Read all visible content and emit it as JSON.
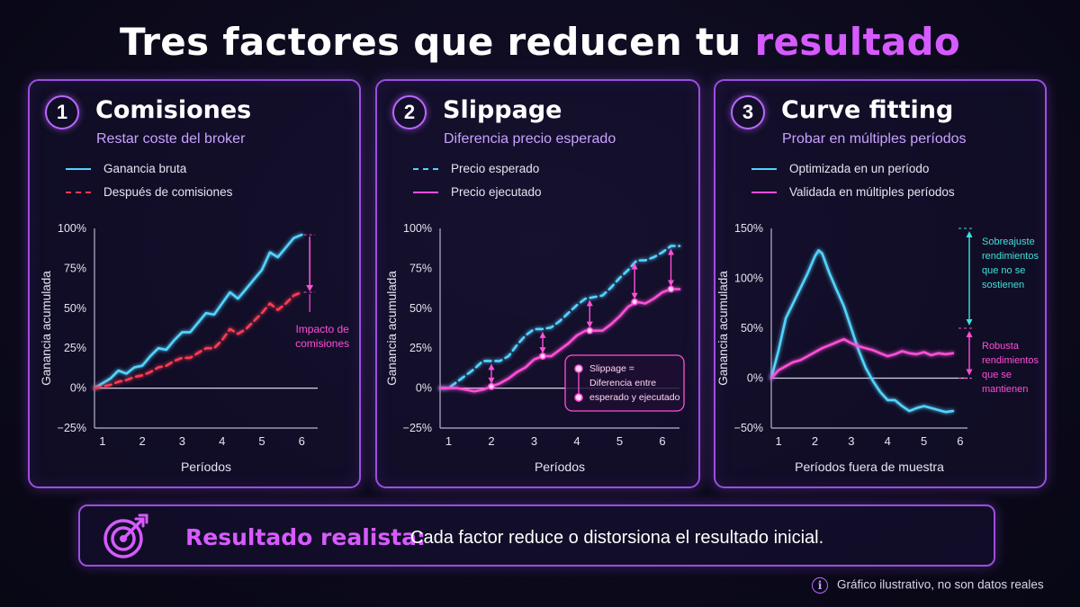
{
  "title": {
    "main": "Tres factores que reducen tu ",
    "accent": "resultado"
  },
  "colors": {
    "cyan": "#52d4ff",
    "red": "#ff3a52",
    "magenta": "#ff4fd8",
    "purple": "#9a4fe0",
    "accent": "#d65bff"
  },
  "panels": [
    {
      "number": "1",
      "title": "Comisiones",
      "subtitle": "Restar coste del broker",
      "legend": [
        {
          "label": "Ganancia bruta",
          "color": "#52d4ff",
          "style": "solid"
        },
        {
          "label": "Después de comisiones",
          "color": "#ff3a52",
          "style": "dashed"
        }
      ]
    },
    {
      "number": "2",
      "title": "Slippage",
      "subtitle": "Diferencia precio esperado",
      "legend": [
        {
          "label": "Precio esperado",
          "color": "#52d4ff",
          "style": "dashed"
        },
        {
          "label": "Precio ejecutado",
          "color": "#ff4fd8",
          "style": "solid"
        }
      ]
    },
    {
      "number": "3",
      "title": "Curve fitting",
      "subtitle": "Probar en múltiples períodos",
      "legend": [
        {
          "label": "Optimizada en un período",
          "color": "#52d4ff",
          "style": "solid"
        },
        {
          "label": "Validada en múltiples períodos",
          "color": "#ff4fd8",
          "style": "solid"
        }
      ]
    }
  ],
  "chart_data": [
    {
      "type": "line",
      "xlabel": "Períodos",
      "ylabel": "Ganancia acumulada",
      "xlim": [
        0.8,
        6.4
      ],
      "ylim": [
        -25,
        100
      ],
      "x_ticks": [
        "1",
        "2",
        "3",
        "4",
        "5",
        "6"
      ],
      "y_ticks": [
        "100%",
        "75%",
        "50%",
        "25%",
        "0%",
        "−25%"
      ],
      "y_tick_values": [
        100,
        75,
        50,
        25,
        0,
        -25
      ],
      "series": [
        {
          "name": "Ganancia bruta",
          "color": "#52d4ff",
          "dash": false,
          "x": [
            0.8,
            1.0,
            1.2,
            1.4,
            1.6,
            1.8,
            2.0,
            2.2,
            2.4,
            2.6,
            2.8,
            3.0,
            3.2,
            3.4,
            3.6,
            3.8,
            4.0,
            4.2,
            4.4,
            4.6,
            4.8,
            5.0,
            5.2,
            5.4,
            5.6,
            5.8,
            6.0
          ],
          "y": [
            0,
            3,
            6,
            11,
            9,
            13,
            14,
            20,
            25,
            24,
            30,
            35,
            35,
            41,
            47,
            46,
            53,
            60,
            56,
            62,
            68,
            74,
            85,
            82,
            88,
            94,
            96
          ]
        },
        {
          "name": "Después de comisiones",
          "color": "#ff3a52",
          "dash": true,
          "x": [
            0.8,
            1.0,
            1.2,
            1.4,
            1.6,
            1.8,
            2.0,
            2.2,
            2.4,
            2.6,
            2.8,
            3.0,
            3.2,
            3.4,
            3.6,
            3.8,
            4.0,
            4.2,
            4.4,
            4.6,
            4.8,
            5.0,
            5.2,
            5.4,
            5.6,
            5.8,
            6.0
          ],
          "y": [
            0,
            1,
            2,
            4,
            5,
            7,
            8,
            10,
            13,
            14,
            17,
            19,
            19,
            22,
            25,
            25,
            30,
            37,
            34,
            37,
            42,
            47,
            53,
            49,
            53,
            58,
            60
          ]
        }
      ],
      "annotation": {
        "line1": "Impacto de",
        "line2": "comisiones",
        "x": 6.2,
        "y_from": 96,
        "y_to": 60
      }
    },
    {
      "type": "line",
      "xlabel": "Períodos",
      "ylabel": "Ganancia acumulada",
      "xlim": [
        0.8,
        6.4
      ],
      "ylim": [
        -25,
        100
      ],
      "x_ticks": [
        "1",
        "2",
        "3",
        "4",
        "5",
        "6"
      ],
      "y_ticks": [
        "100%",
        "75%",
        "50%",
        "25%",
        "0%",
        "−25%"
      ],
      "y_tick_values": [
        100,
        75,
        50,
        25,
        0,
        -25
      ],
      "series": [
        {
          "name": "Precio esperado",
          "color": "#52d4ff",
          "dash": true,
          "x": [
            0.8,
            1.0,
            1.2,
            1.4,
            1.6,
            1.8,
            2.0,
            2.2,
            2.4,
            2.6,
            2.8,
            3.0,
            3.2,
            3.4,
            3.6,
            3.8,
            4.0,
            4.2,
            4.4,
            4.6,
            4.8,
            5.0,
            5.2,
            5.4,
            5.6,
            5.8,
            6.0,
            6.2,
            6.4
          ],
          "y": [
            0,
            0,
            4,
            8,
            12,
            17,
            17,
            17,
            20,
            27,
            33,
            37,
            37,
            38,
            42,
            47,
            52,
            56,
            57,
            58,
            63,
            69,
            74,
            80,
            80,
            82,
            85,
            89,
            89
          ]
        },
        {
          "name": "Precio ejecutado",
          "color": "#ff4fd8",
          "dash": false,
          "x": [
            0.8,
            1.0,
            1.2,
            1.4,
            1.6,
            1.8,
            2.0,
            2.2,
            2.4,
            2.6,
            2.8,
            3.0,
            3.2,
            3.4,
            3.6,
            3.8,
            4.0,
            4.2,
            4.4,
            4.6,
            4.8,
            5.0,
            5.2,
            5.4,
            5.6,
            5.8,
            6.0,
            6.2,
            6.4
          ],
          "y": [
            0,
            0,
            0,
            -1,
            -2,
            -1,
            1,
            3,
            6,
            10,
            13,
            18,
            20,
            20,
            24,
            28,
            33,
            36,
            36,
            36,
            40,
            45,
            51,
            54,
            53,
            56,
            60,
            62,
            62
          ]
        }
      ],
      "slippage_markers": [
        {
          "x": 2.0,
          "y_top": 17,
          "y_bottom": 1
        },
        {
          "x": 3.2,
          "y_top": 37,
          "y_bottom": 20
        },
        {
          "x": 4.3,
          "y_top": 57,
          "y_bottom": 36
        },
        {
          "x": 5.35,
          "y_top": 80,
          "y_bottom": 54
        },
        {
          "x": 6.2,
          "y_top": 89,
          "y_bottom": 62
        }
      ],
      "callout": {
        "line1": "Slippage =",
        "line2": "Diferencia entre",
        "line3": "esperado y ejecutado"
      }
    },
    {
      "type": "line",
      "xlabel": "Períodos fuera de muestra",
      "ylabel": "Ganancia acumulada",
      "xlim": [
        0.8,
        6.2
      ],
      "ylim": [
        -50,
        150
      ],
      "x_ticks": [
        "1",
        "2",
        "3",
        "4",
        "5",
        "6"
      ],
      "y_ticks": [
        "150%",
        "100%",
        "50%",
        "0%",
        "−50%"
      ],
      "y_tick_values": [
        150,
        100,
        50,
        0,
        -50
      ],
      "series": [
        {
          "name": "Optimizada en un período",
          "color": "#52d4ff",
          "dash": false,
          "x": [
            0.8,
            1.0,
            1.2,
            1.4,
            1.6,
            1.8,
            2.0,
            2.1,
            2.2,
            2.4,
            2.6,
            2.8,
            3.0,
            3.2,
            3.4,
            3.6,
            3.8,
            4.0,
            4.2,
            4.4,
            4.6,
            4.8,
            5.0,
            5.2,
            5.4,
            5.6,
            5.8
          ],
          "y": [
            0,
            28,
            60,
            75,
            90,
            105,
            122,
            128,
            125,
            105,
            88,
            72,
            50,
            28,
            10,
            -3,
            -14,
            -22,
            -22,
            -28,
            -33,
            -30,
            -28,
            -30,
            -32,
            -34,
            -33
          ]
        },
        {
          "name": "Validada en múltiples períodos",
          "color": "#ff4fd8",
          "dash": false,
          "x": [
            0.8,
            1.0,
            1.2,
            1.4,
            1.6,
            1.8,
            2.0,
            2.2,
            2.4,
            2.6,
            2.8,
            3.0,
            3.2,
            3.4,
            3.6,
            3.8,
            4.0,
            4.2,
            4.4,
            4.6,
            4.8,
            5.0,
            5.2,
            5.4,
            5.6,
            5.8
          ],
          "y": [
            0,
            8,
            12,
            16,
            18,
            22,
            26,
            30,
            33,
            36,
            39,
            35,
            32,
            30,
            28,
            25,
            22,
            24,
            27,
            25,
            24,
            26,
            23,
            25,
            24,
            25
          ]
        }
      ],
      "annotations": [
        {
          "lines": [
            "Sobreajuste",
            "rendimientos",
            "que no se",
            "sostienen"
          ],
          "color": "#40e0d8",
          "y_from": 150,
          "y_to": 50
        },
        {
          "lines": [
            "Robusta",
            "rendimientos",
            "que se",
            "mantienen"
          ],
          "color": "#ff4fd8",
          "y_from": 50,
          "y_to": 0
        }
      ]
    }
  ],
  "footer": {
    "label": "Resultado realista:",
    "text": "Cada factor reduce o distorsiona el resultado inicial."
  },
  "note": {
    "icon": "i",
    "text": "Gráfico ilustrativo, no son datos reales"
  }
}
